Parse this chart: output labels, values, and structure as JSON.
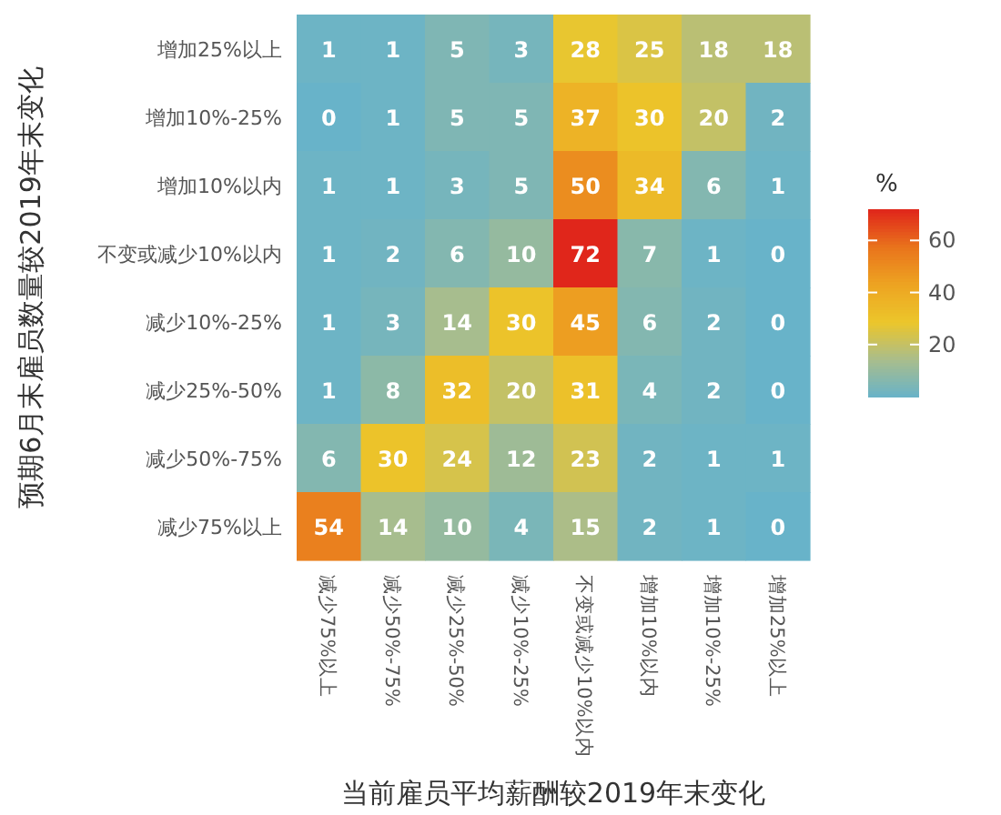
{
  "chart_data": {
    "type": "heatmap",
    "xlabel": "当前雇员平均薪酬较2019年末变化",
    "ylabel": "预期6月末雇员数量较2019年末变化",
    "clabel": "%",
    "categories": [
      "减少75%以上",
      "减少50%-75%",
      "减少25%-50%",
      "减少10%-25%",
      "不变或减少10%以内",
      "增加10%以内",
      "增加10%-25%",
      "增加25%以上"
    ],
    "y_categories": [
      "增加25%以上",
      "增加10%-25%",
      "增加10%以内",
      "不变或减少10%以内",
      "减少10%-25%",
      "减少25%-50%",
      "减少50%-75%",
      "减少75%以上"
    ],
    "cells": [
      [
        1,
        1,
        5,
        3,
        28,
        25,
        18,
        18
      ],
      [
        0,
        1,
        5,
        5,
        37,
        30,
        20,
        2
      ],
      [
        1,
        1,
        3,
        5,
        50,
        34,
        6,
        1
      ],
      [
        1,
        2,
        6,
        10,
        72,
        7,
        1,
        0
      ],
      [
        1,
        3,
        14,
        30,
        45,
        6,
        2,
        0
      ],
      [
        1,
        8,
        32,
        20,
        31,
        4,
        2,
        0
      ],
      [
        6,
        30,
        24,
        12,
        23,
        2,
        1,
        1
      ],
      [
        54,
        14,
        10,
        4,
        15,
        2,
        1,
        0
      ]
    ],
    "clim": [
      0,
      72
    ],
    "cticks": [
      20,
      40,
      60
    ],
    "colors": [
      "#68b3c9",
      "#a9bd8c",
      "#ecc62b",
      "#eda422",
      "#e9741c",
      "#e0261b"
    ],
    "data_labels": true
  }
}
